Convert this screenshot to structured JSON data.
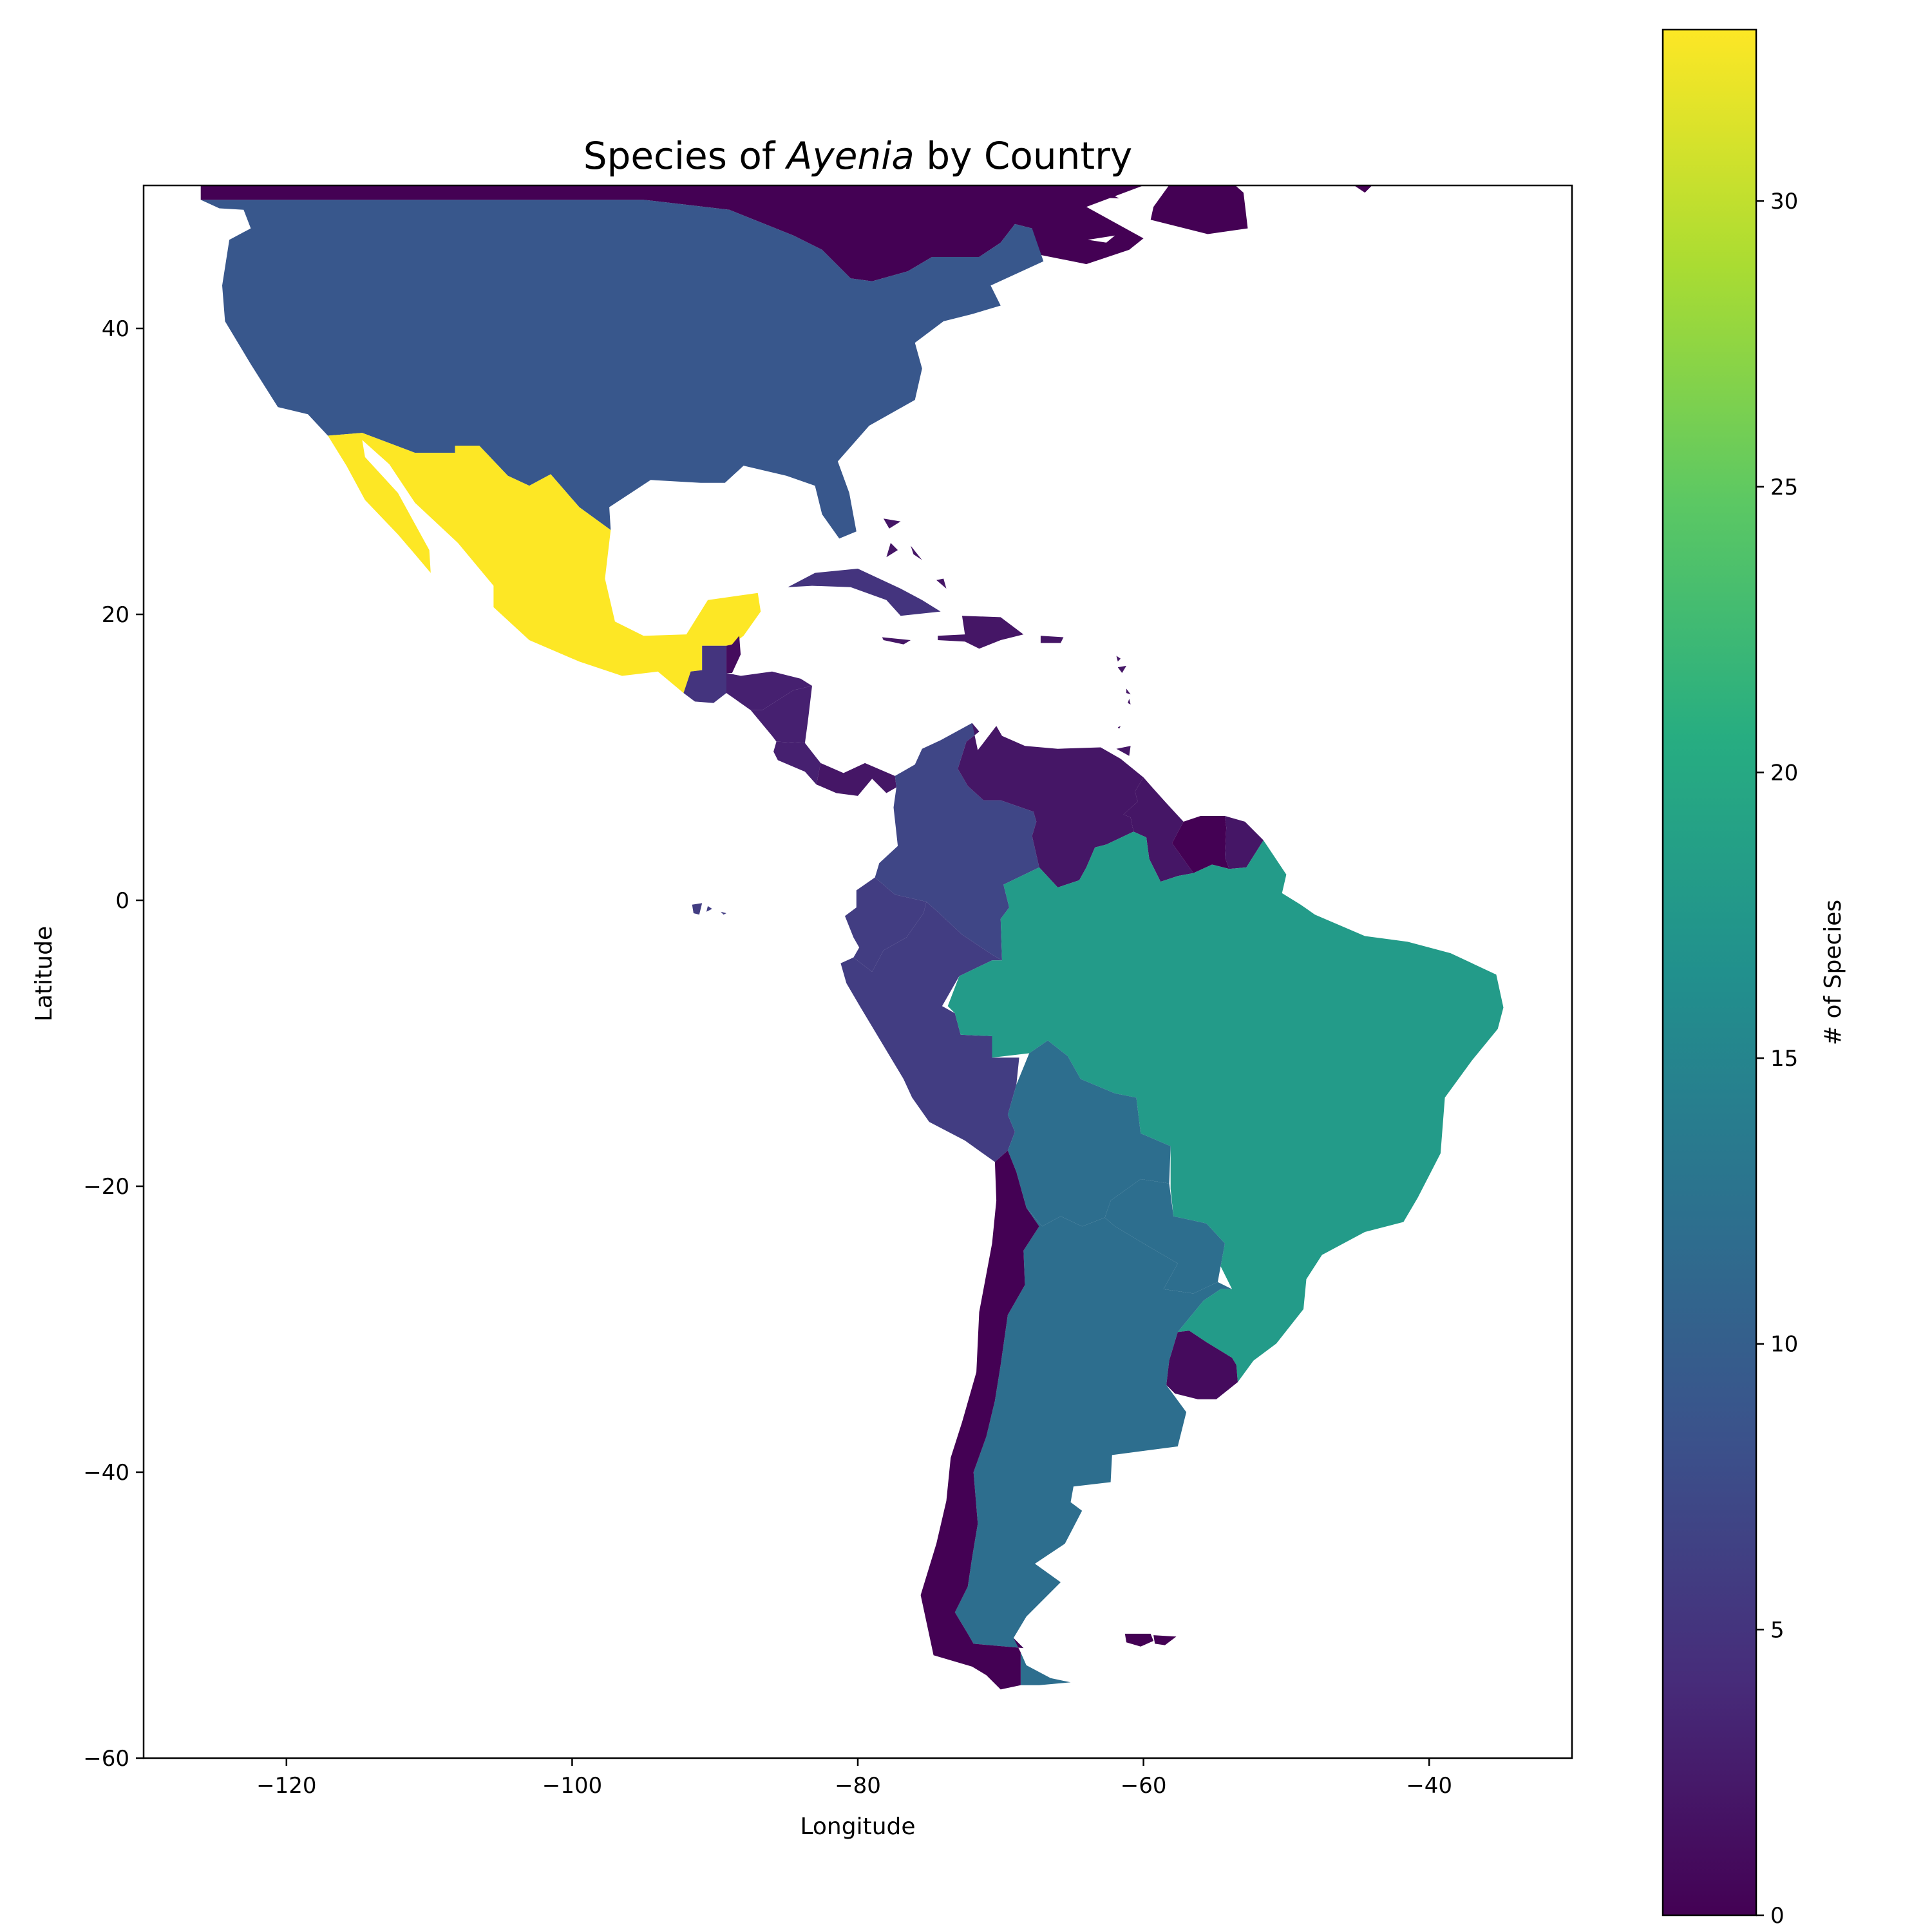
{
  "chart_data": {
    "type": "choropleth",
    "title": {
      "prefix": "Species of ",
      "genus": "Ayenia",
      "suffix": " by Country"
    },
    "xlabel": "Longitude",
    "ylabel": "Latitude",
    "xlim": [
      -130,
      -30
    ],
    "ylim": [
      -60,
      50
    ],
    "xticks": [
      -120,
      -100,
      -80,
      -60,
      -40
    ],
    "yticks": [
      -60,
      -40,
      -20,
      0,
      20,
      40
    ],
    "xtick_labels": [
      "−120",
      "−100",
      "−80",
      "−60",
      "−40"
    ],
    "ytick_labels": [
      "−60",
      "−40",
      "−20",
      "0",
      "20",
      "40"
    ],
    "colorbar": {
      "label": "# of Species",
      "range": [
        0,
        33
      ],
      "ticks": [
        0,
        5,
        10,
        15,
        20,
        25,
        30
      ],
      "tick_labels": [
        "0",
        "5",
        "10",
        "15",
        "20",
        "25",
        "30"
      ],
      "colormap": "viridis"
    },
    "regions": [
      {
        "name": "Canada",
        "species": 0
      },
      {
        "name": "United States",
        "species": 9
      },
      {
        "name": "Mexico",
        "species": 33
      },
      {
        "name": "Belize",
        "species": 1
      },
      {
        "name": "Guatemala",
        "species": 5
      },
      {
        "name": "Honduras",
        "species": 3
      },
      {
        "name": "Nicaragua",
        "species": 3
      },
      {
        "name": "Costa Rica",
        "species": 3
      },
      {
        "name": "Panama",
        "species": 2
      },
      {
        "name": "Cuba",
        "species": 5
      },
      {
        "name": "Bahamas",
        "species": 2
      },
      {
        "name": "Jamaica",
        "species": 2
      },
      {
        "name": "Hispaniola",
        "species": 2
      },
      {
        "name": "Puerto Rico",
        "species": 2
      },
      {
        "name": "Lesser Antilles",
        "species": 2
      },
      {
        "name": "Colombia",
        "species": 7
      },
      {
        "name": "Venezuela",
        "species": 2
      },
      {
        "name": "Guyana",
        "species": 2
      },
      {
        "name": "Suriname",
        "species": 0
      },
      {
        "name": "French Guiana",
        "species": 2
      },
      {
        "name": "Ecuador",
        "species": 6
      },
      {
        "name": "Galapagos",
        "species": 6
      },
      {
        "name": "Peru",
        "species": 6
      },
      {
        "name": "Brazil",
        "species": 18
      },
      {
        "name": "Bolivia",
        "species": 12
      },
      {
        "name": "Paraguay",
        "species": 12
      },
      {
        "name": "Argentina",
        "species": 12
      },
      {
        "name": "Chile",
        "species": 0
      },
      {
        "name": "Uruguay",
        "species": 1
      },
      {
        "name": "Falkland Islands",
        "species": 0
      },
      {
        "name": "Greenland",
        "species": 0
      }
    ]
  }
}
